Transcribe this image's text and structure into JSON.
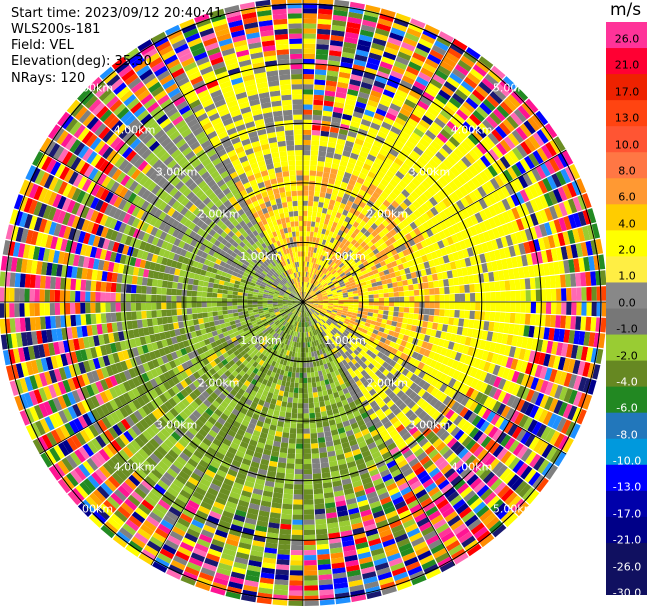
{
  "info": {
    "start_time": "Start time: 2023/09/12 20:40:41",
    "site": "WLS200s-181",
    "field": "Field: VEL",
    "elevation": "Elevation(deg): 35.30",
    "nrays": "NRays: 120"
  },
  "colorbar": {
    "unit": "m/s",
    "ticks": [
      "26.0",
      "21.0",
      "17.0",
      "13.0",
      "10.0",
      "8.0",
      "6.0",
      "4.0",
      "2.0",
      "1.0",
      "0.0",
      "-1.0",
      "-2.0",
      "-4.0",
      "-6.0",
      "-8.0",
      "-10.0",
      "-13.0",
      "-17.0",
      "-21.0",
      "-26.0",
      "-30.0"
    ],
    "colors": [
      "#ff3399",
      "#ff0033",
      "#ee2200",
      "#ff4411",
      "#ff5533",
      "#ff7744",
      "#ff9933",
      "#ffcc00",
      "#ffff00",
      "#ffee44",
      "#888888",
      "#777777",
      "#99cc33",
      "#668822",
      "#228822",
      "#2277bb",
      "#0099dd",
      "#0000ff",
      "#0000aa",
      "#000088",
      "#101060",
      "#101060"
    ]
  },
  "chart_data": {
    "type": "heatmap",
    "plot_kind": "PPI polar scan",
    "field": "VEL",
    "units": "m/s",
    "n_rays": 120,
    "elevation_deg": 35.3,
    "vmin": -30.0,
    "vmax": 30.0,
    "range_rings": [
      {
        "label": "1.00km"
      },
      {
        "label": "2.00km"
      },
      {
        "label": "3.00km"
      },
      {
        "label": "4.00km"
      },
      {
        "label": "5.00km"
      }
    ],
    "ring_radii_km": [
      1,
      2,
      3,
      4,
      5
    ],
    "max_range_km": 5.0,
    "spokes_deg": [
      0,
      30,
      60,
      90,
      120,
      150,
      180,
      210,
      240,
      270,
      300,
      330
    ]
  }
}
